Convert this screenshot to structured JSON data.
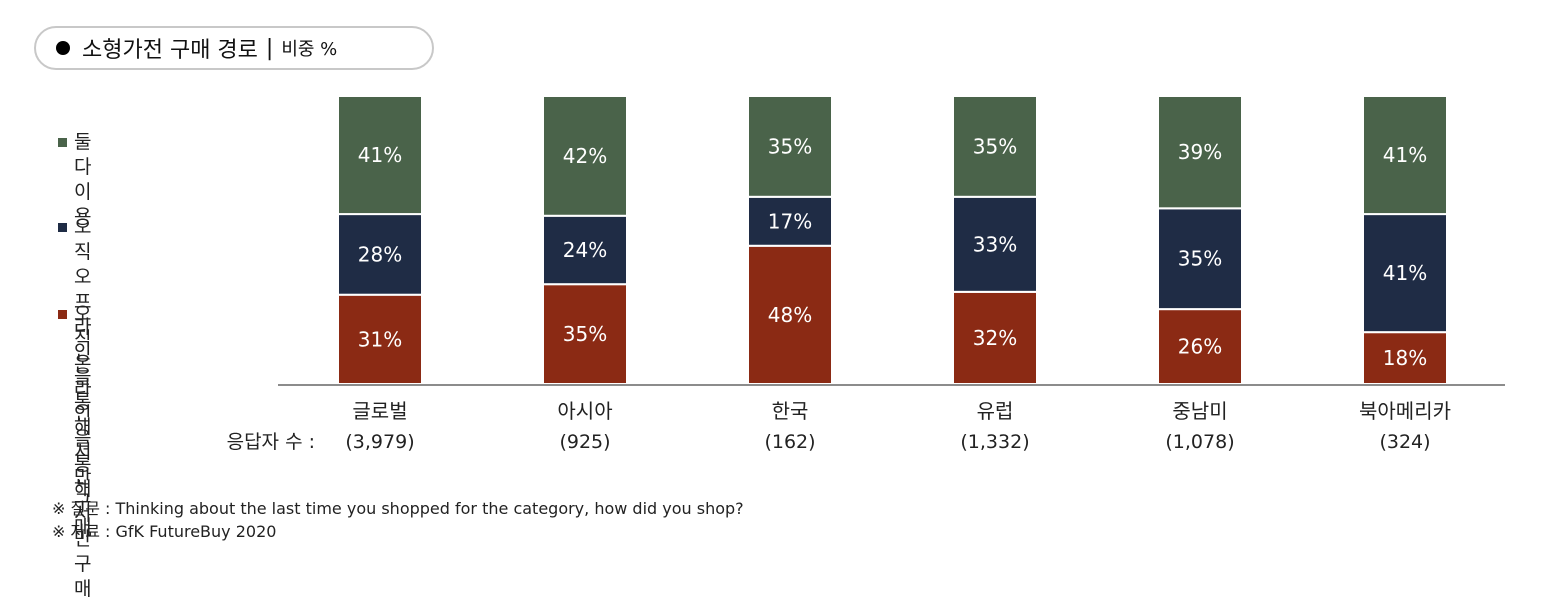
{
  "title": {
    "main": "소형가전 구매 경로",
    "separator": "|",
    "unit": "비중 %"
  },
  "chart_data": {
    "type": "bar",
    "stacked": true,
    "categories": [
      "글로벌",
      "아시아",
      "한국",
      "유럽",
      "중남미",
      "북아메리카"
    ],
    "respondents_label": "응답자 수 :",
    "respondents": [
      "(3,979)",
      "(925)",
      "(162)",
      "(1,332)",
      "(1,078)",
      "(324)"
    ],
    "series": [
      {
        "name": "오직 온라인을\n통해서만 구매",
        "color": "#8b2a14",
        "values": [
          31,
          35,
          48,
          32,
          26,
          18
        ]
      },
      {
        "name": "오직 오프라인을\n통해서만 구매",
        "color": "#1f2c45",
        "values": [
          28,
          24,
          17,
          33,
          35,
          41
        ]
      },
      {
        "name": "둘다 이용",
        "color": "#4a634a",
        "values": [
          41,
          42,
          35,
          35,
          39,
          41
        ]
      }
    ],
    "value_suffix": "%",
    "legend_position": "left",
    "ylim": [
      0,
      100
    ],
    "grid": false
  },
  "footnotes": {
    "question": "※ 질문 :  Thinking about the last time you shopped for the category, how did you shop?",
    "source": "※ 자료 : GfK FutureBuy 2020"
  },
  "colors": {
    "both": "#4a634a",
    "offline": "#1f2c45",
    "online": "#8b2a14",
    "axis": "#8c8c8c",
    "pill_border": "#c8c8c8"
  }
}
